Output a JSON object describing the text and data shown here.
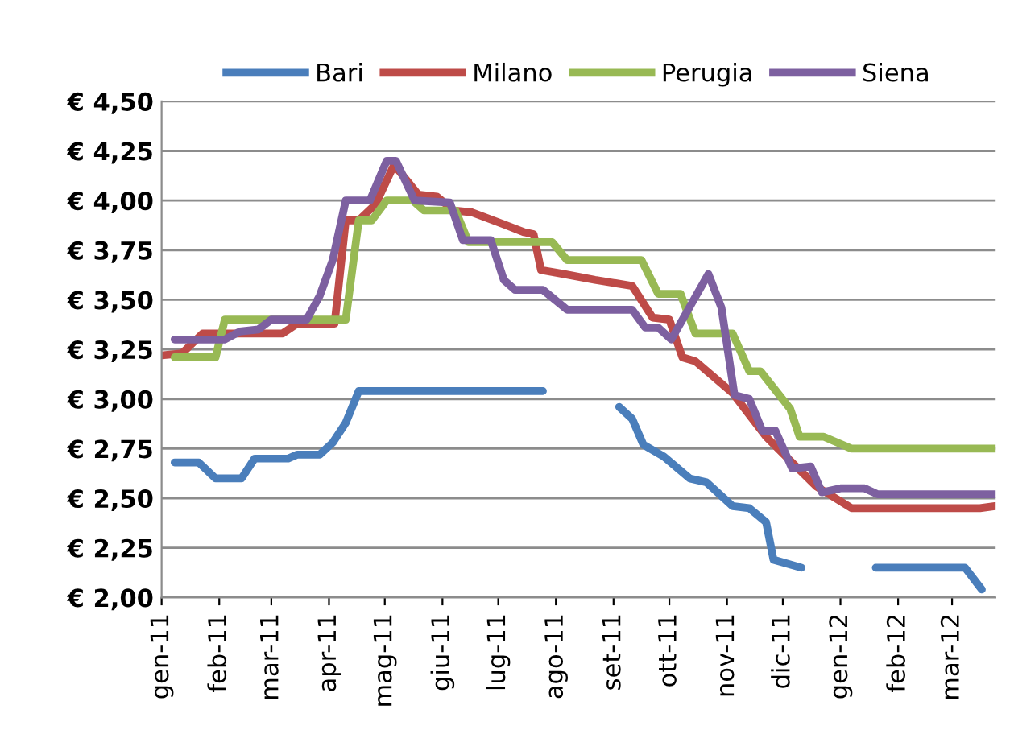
{
  "chart_data": {
    "type": "line",
    "legend": "top",
    "grid": "y",
    "marker": "none",
    "line_style": "solid",
    "xlim": [
      "2011-01-01",
      "2012-03-24"
    ],
    "xticks": [
      {
        "value": "2011-01-01",
        "label": "gen-11"
      },
      {
        "value": "2011-02-01",
        "label": "feb-11"
      },
      {
        "value": "2011-03-01",
        "label": "mar-11"
      },
      {
        "value": "2011-04-01",
        "label": "apr-11"
      },
      {
        "value": "2011-05-01",
        "label": "mag-11"
      },
      {
        "value": "2011-06-01",
        "label": "giu-11"
      },
      {
        "value": "2011-07-01",
        "label": "lug-11"
      },
      {
        "value": "2011-08-01",
        "label": "ago-11"
      },
      {
        "value": "2011-09-01",
        "label": "set-11"
      },
      {
        "value": "2011-10-01",
        "label": "ott-11"
      },
      {
        "value": "2011-11-01",
        "label": "nov-11"
      },
      {
        "value": "2011-12-01",
        "label": "dic-11"
      },
      {
        "value": "2012-01-01",
        "label": "gen-12"
      },
      {
        "value": "2012-02-01",
        "label": "feb-12"
      },
      {
        "value": "2012-03-01",
        "label": "mar-12"
      }
    ],
    "ylim": [
      2.0,
      4.5
    ],
    "yticks": [
      {
        "value": 2.0,
        "label": "€ 2,00"
      },
      {
        "value": 2.25,
        "label": "€ 2,25"
      },
      {
        "value": 2.5,
        "label": "€ 2,50"
      },
      {
        "value": 2.75,
        "label": "€ 2,75"
      },
      {
        "value": 3.0,
        "label": "€ 3,00"
      },
      {
        "value": 3.25,
        "label": "€ 3,25"
      },
      {
        "value": 3.5,
        "label": "€ 3,50"
      },
      {
        "value": 3.75,
        "label": "€ 3,75"
      },
      {
        "value": 4.0,
        "label": "€ 4,00"
      },
      {
        "value": 4.25,
        "label": "€ 4,25"
      },
      {
        "value": 4.5,
        "label": "€ 4,50"
      }
    ],
    "series": [
      {
        "name": "Bari",
        "color": "#4a7ebb",
        "x": [
          "2011-01-08",
          "2011-01-21",
          "2011-01-30",
          "2011-02-13",
          "2011-02-20",
          "2011-03-10",
          "2011-03-15",
          "2011-03-27",
          "2011-04-03",
          "2011-04-10",
          "2011-04-17",
          "2011-07-25",
          "2011-08-15",
          "2011-09-04",
          "2011-09-11",
          "2011-09-17",
          "2011-09-28",
          "2011-10-12",
          "2011-10-21",
          "2011-11-04",
          "2011-11-13",
          "2011-11-22",
          "2011-11-26",
          "2011-12-11",
          "2011-12-30",
          "2012-01-20",
          "2012-03-08",
          "2012-03-17"
        ],
        "values": [
          2.68,
          2.68,
          2.6,
          2.6,
          2.7,
          2.7,
          2.72,
          2.72,
          2.78,
          2.88,
          3.04,
          3.04,
          null,
          2.96,
          2.9,
          2.77,
          2.71,
          2.6,
          2.58,
          2.46,
          2.45,
          2.38,
          2.19,
          2.15,
          null,
          2.15,
          2.15,
          2.04
        ]
      },
      {
        "name": "Milano",
        "color": "#be4b48",
        "x": [
          "2011-01-01",
          "2011-01-12",
          "2011-01-23",
          "2011-03-07",
          "2011-03-15",
          "2011-04-04",
          "2011-04-10",
          "2011-04-17",
          "2011-04-26",
          "2011-05-06",
          "2011-05-19",
          "2011-05-29",
          "2011-06-07",
          "2011-06-17",
          "2011-07-04",
          "2011-07-15",
          "2011-07-20",
          "2011-07-24",
          "2011-08-05",
          "2011-08-22",
          "2011-09-11",
          "2011-09-22",
          "2011-10-01",
          "2011-10-08",
          "2011-10-15",
          "2011-11-04",
          "2011-11-22",
          "2011-12-06",
          "2011-12-19",
          "2012-01-07",
          "2012-03-16",
          "2012-03-24"
        ],
        "values": [
          3.22,
          3.23,
          3.33,
          3.33,
          3.38,
          3.38,
          3.9,
          3.9,
          3.98,
          4.18,
          4.03,
          4.02,
          3.95,
          3.94,
          3.88,
          3.84,
          3.83,
          3.65,
          3.63,
          3.6,
          3.57,
          3.41,
          3.4,
          3.21,
          3.19,
          3.03,
          2.81,
          2.68,
          2.56,
          2.45,
          2.45,
          2.46
        ]
      },
      {
        "name": "Perugia",
        "color": "#98b954",
        "x": [
          "2011-01-08",
          "2011-01-30",
          "2011-02-04",
          "2011-04-10",
          "2011-04-17",
          "2011-04-24",
          "2011-05-02",
          "2011-05-16",
          "2011-05-22",
          "2011-06-08",
          "2011-06-15",
          "2011-07-30",
          "2011-08-07",
          "2011-09-16",
          "2011-09-25",
          "2011-10-07",
          "2011-10-15",
          "2011-11-04",
          "2011-11-13",
          "2011-11-19",
          "2011-12-05",
          "2011-12-10",
          "2011-12-23",
          "2012-01-07",
          "2012-03-24"
        ],
        "values": [
          3.21,
          3.21,
          3.4,
          3.4,
          3.9,
          3.9,
          4.0,
          4.0,
          3.95,
          3.95,
          3.79,
          3.79,
          3.7,
          3.7,
          3.53,
          3.53,
          3.33,
          3.33,
          3.14,
          3.14,
          2.95,
          2.81,
          2.81,
          2.75,
          2.75
        ]
      },
      {
        "name": "Siena",
        "color": "#7d60a0",
        "x": [
          "2011-01-08",
          "2011-02-04",
          "2011-02-12",
          "2011-02-22",
          "2011-03-01",
          "2011-03-20",
          "2011-03-27",
          "2011-04-03",
          "2011-04-10",
          "2011-04-23",
          "2011-05-02",
          "2011-05-07",
          "2011-05-17",
          "2011-06-05",
          "2011-06-12",
          "2011-06-27",
          "2011-07-04",
          "2011-07-10",
          "2011-07-25",
          "2011-08-07",
          "2011-09-11",
          "2011-09-18",
          "2011-09-25",
          "2011-10-02",
          "2011-10-22",
          "2011-10-29",
          "2011-11-05",
          "2011-11-13",
          "2011-11-20",
          "2011-11-27",
          "2011-12-06",
          "2011-12-16",
          "2011-12-22",
          "2012-01-01",
          "2012-01-14",
          "2012-01-21",
          "2012-03-24"
        ],
        "values": [
          3.3,
          3.3,
          3.34,
          3.35,
          3.4,
          3.4,
          3.52,
          3.7,
          4.0,
          4.0,
          4.2,
          4.2,
          4.0,
          3.99,
          3.8,
          3.8,
          3.6,
          3.55,
          3.55,
          3.45,
          3.45,
          3.36,
          3.36,
          3.3,
          3.63,
          3.46,
          3.02,
          3.0,
          2.84,
          2.84,
          2.65,
          2.66,
          2.53,
          2.55,
          2.55,
          2.52,
          2.52
        ]
      }
    ]
  }
}
